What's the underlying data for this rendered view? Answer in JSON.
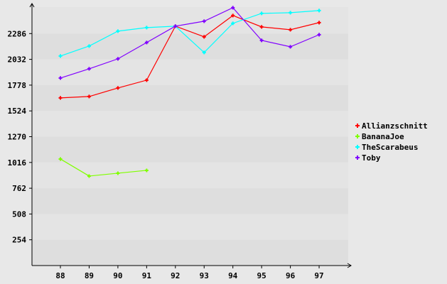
{
  "chart_data": {
    "type": "line",
    "title": "",
    "xlabel": "",
    "ylabel": "",
    "x": [
      "88",
      "89",
      "90",
      "91",
      "92",
      "93",
      "94",
      "95",
      "96",
      "97"
    ],
    "y_ticks": [
      254,
      508,
      762,
      1016,
      1270,
      1524,
      1778,
      2032,
      2286
    ],
    "ylim": [
      0,
      2547
    ],
    "grid": "horizontal bands",
    "legend_position": "right",
    "series": [
      {
        "name": "Allianzschnitt",
        "color": "#ff0000",
        "values": [
          1652,
          1666,
          1750,
          1827,
          2359,
          2254,
          2464,
          2352,
          2324,
          2394
        ]
      },
      {
        "name": "BananaJoe",
        "color": "#80ff00",
        "values": [
          1050,
          882,
          910,
          938,
          null,
          null,
          null,
          null,
          null,
          null
        ]
      },
      {
        "name": "TheScarabeus",
        "color": "#00ffff",
        "values": [
          2065,
          2163,
          2310,
          2345,
          2359,
          2100,
          2387,
          2485,
          2492,
          2513
        ]
      },
      {
        "name": "Toby",
        "color": "#8000ff",
        "values": [
          1848,
          1939,
          2037,
          2198,
          2359,
          2408,
          2541,
          2219,
          2156,
          2275
        ]
      }
    ]
  }
}
